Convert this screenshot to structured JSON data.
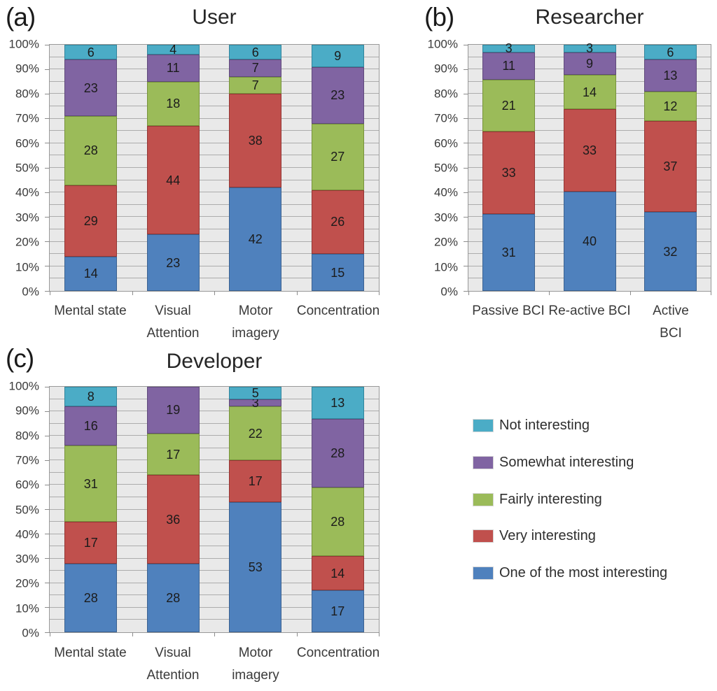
{
  "figure": {
    "background": "#FFFFFF",
    "text_color": "#3A3A3A"
  },
  "palette": {
    "most": {
      "label": "One of the most interesting",
      "fill": "#4F81BD",
      "border": "#3B6291"
    },
    "very": {
      "label": "Very interesting",
      "fill": "#C0504D",
      "border": "#943634"
    },
    "fairly": {
      "label": "Fairly interesting",
      "fill": "#9BBB59",
      "border": "#77933C"
    },
    "somewhat": {
      "label": "Somewhat interesting",
      "fill": "#8064A2",
      "border": "#604A7B"
    },
    "not": {
      "label": "Not interesting",
      "fill": "#4BACC6",
      "border": "#31859C"
    }
  },
  "legend": {
    "items": [
      {
        "key": "not",
        "label": "Not interesting"
      },
      {
        "key": "somewhat",
        "label": "Somewhat interesting"
      },
      {
        "key": "fairly",
        "label": "Fairly interesting"
      },
      {
        "key": "very",
        "label": "Very interesting"
      },
      {
        "key": "most",
        "label": "One of the most interesting"
      }
    ]
  },
  "chart_data": [
    {
      "type": "bar",
      "stacked": true,
      "percent_axis": true,
      "panel": "(a)",
      "title": "User",
      "categories": [
        "Mental state",
        "Visual\nAttention",
        "Motor\nimagery",
        "Concentration"
      ],
      "y_ticks": [
        "0%",
        "10%",
        "20%",
        "30%",
        "40%",
        "50%",
        "60%",
        "70%",
        "80%",
        "90%",
        "100%"
      ],
      "ylim": [
        0,
        100
      ],
      "grid": "horizontal every 5%",
      "series": [
        {
          "name": "One of the most interesting",
          "key": "most",
          "values": [
            14,
            23,
            42,
            15
          ]
        },
        {
          "name": "Very interesting",
          "key": "very",
          "values": [
            29,
            44,
            38,
            26
          ]
        },
        {
          "name": "Fairly interesting",
          "key": "fairly",
          "values": [
            28,
            18,
            7,
            27
          ]
        },
        {
          "name": "Somewhat interesting",
          "key": "somewhat",
          "values": [
            23,
            11,
            7,
            23
          ]
        },
        {
          "name": "Not interesting",
          "key": "not",
          "values": [
            6,
            4,
            6,
            9
          ]
        }
      ]
    },
    {
      "type": "bar",
      "stacked": true,
      "percent_axis": true,
      "panel": "(b)",
      "title": "Researcher",
      "categories": [
        "Passive BCI",
        "Re-active BCI",
        "Active BCI"
      ],
      "y_ticks": [
        "0%",
        "10%",
        "20%",
        "30%",
        "40%",
        "50%",
        "60%",
        "70%",
        "80%",
        "90%",
        "100%"
      ],
      "ylim": [
        0,
        100
      ],
      "grid": "horizontal every 5%",
      "series": [
        {
          "name": "One of the most interesting",
          "key": "most",
          "values": [
            31,
            40,
            32
          ]
        },
        {
          "name": "Very interesting",
          "key": "very",
          "values": [
            33,
            33,
            37
          ]
        },
        {
          "name": "Fairly interesting",
          "key": "fairly",
          "values": [
            21,
            14,
            12
          ]
        },
        {
          "name": "Somewhat interesting",
          "key": "somewhat",
          "values": [
            11,
            9,
            13
          ]
        },
        {
          "name": "Not interesting",
          "key": "not",
          "values": [
            3,
            3,
            6
          ]
        }
      ]
    },
    {
      "type": "bar",
      "stacked": true,
      "percent_axis": true,
      "panel": "(c)",
      "title": "Developer",
      "categories": [
        "Mental state",
        "Visual\nAttention",
        "Motor\nimagery",
        "Concentration"
      ],
      "y_ticks": [
        "0%",
        "10%",
        "20%",
        "30%",
        "40%",
        "50%",
        "60%",
        "70%",
        "80%",
        "90%",
        "100%"
      ],
      "ylim": [
        0,
        100
      ],
      "grid": "horizontal every 5%",
      "series": [
        {
          "name": "One of the most interesting",
          "key": "most",
          "values": [
            28,
            28,
            53,
            17
          ]
        },
        {
          "name": "Very interesting",
          "key": "very",
          "values": [
            17,
            36,
            17,
            14
          ]
        },
        {
          "name": "Fairly interesting",
          "key": "fairly",
          "values": [
            31,
            17,
            22,
            28
          ]
        },
        {
          "name": "Somewhat interesting",
          "key": "somewhat",
          "values": [
            16,
            19,
            3,
            28
          ]
        },
        {
          "name": "Not interesting",
          "key": "not",
          "values": [
            8,
            0,
            5,
            13
          ]
        }
      ]
    }
  ]
}
